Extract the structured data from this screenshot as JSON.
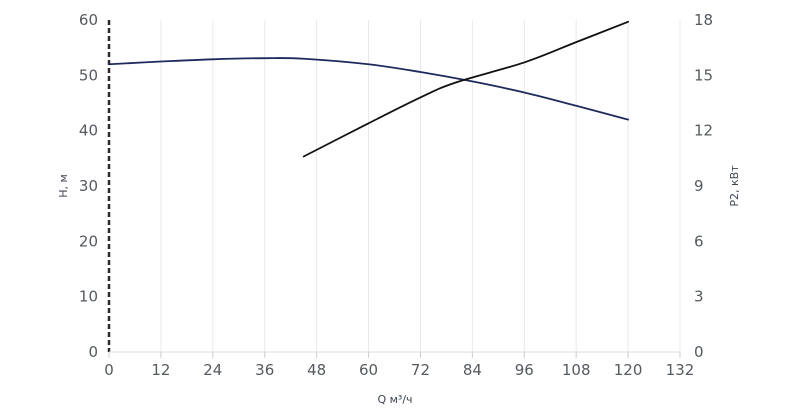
{
  "chart_data": {
    "type": "line",
    "xlabel": "Q м³/ч",
    "ylabel_left": "H, м",
    "ylabel_right": "P2, кВт",
    "xlim": [
      0,
      132
    ],
    "ylim_left": [
      0,
      60
    ],
    "ylim_right": [
      0,
      18
    ],
    "x_ticks": [
      "0",
      "12",
      "24",
      "36",
      "48",
      "60",
      "72",
      "84",
      "96",
      "108",
      "120",
      "132"
    ],
    "y_ticks_left": [
      "0",
      "10",
      "20",
      "30",
      "40",
      "50",
      "60"
    ],
    "y_ticks_right": [
      "0",
      "3",
      "6",
      "9",
      "12",
      "15",
      "18"
    ],
    "grid": "vertical",
    "series": [
      {
        "axis": "left",
        "color": "#1f2a5c",
        "x": [
          0,
          12,
          24,
          36,
          45,
          60,
          72,
          84,
          96,
          108,
          120
        ],
        "y": [
          52.0,
          52.5,
          52.9,
          53.1,
          53.0,
          52.0,
          50.6,
          48.9,
          46.9,
          44.5,
          42.0
        ]
      },
      {
        "axis": "right",
        "color": "#111111",
        "x": [
          45,
          60,
          72,
          80,
          96,
          108,
          120
        ],
        "y": [
          10.6,
          12.4,
          13.8,
          14.6,
          15.7,
          16.8,
          17.9
        ]
      }
    ]
  }
}
